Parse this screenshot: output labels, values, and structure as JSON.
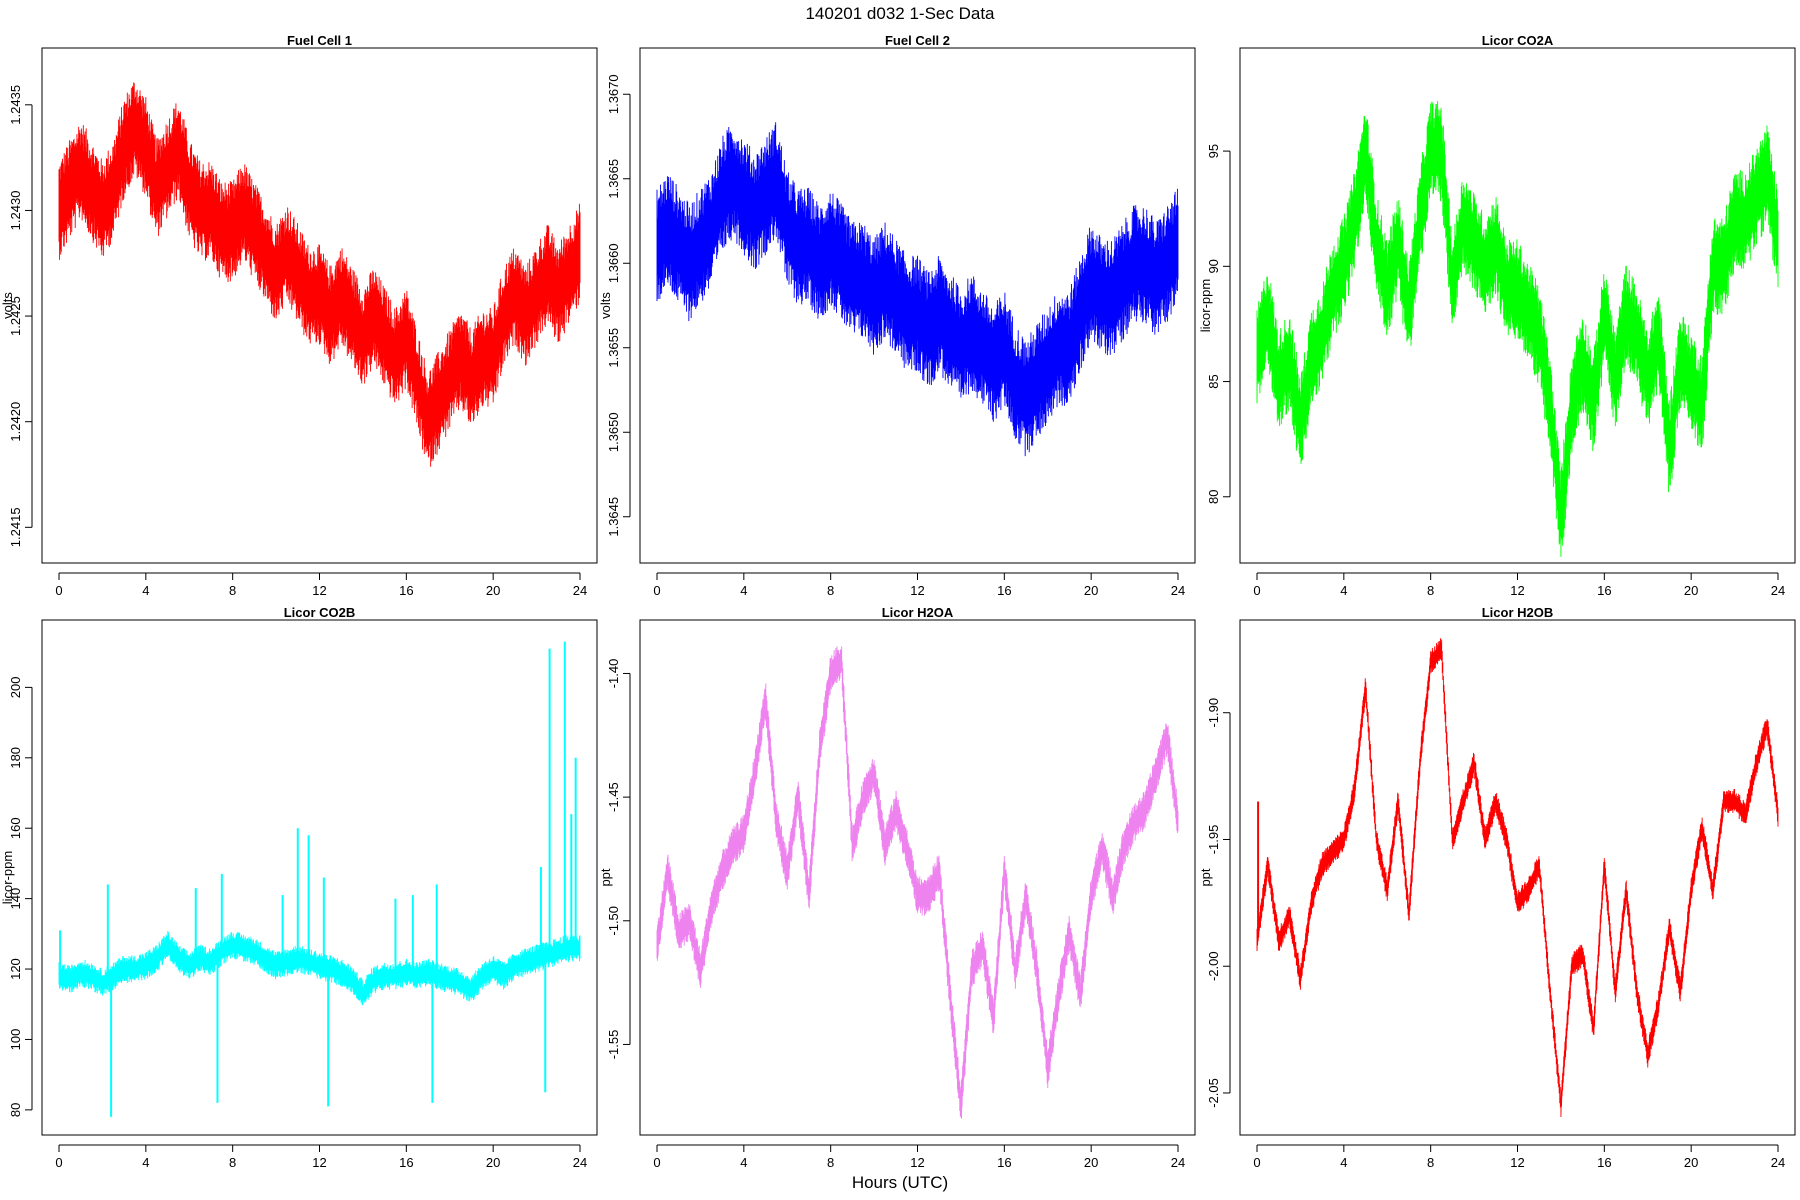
{
  "figure": {
    "title": "140201   d032   1-Sec Data",
    "xlabel": "Hours (UTC)"
  },
  "chart_data": [
    {
      "type": "line",
      "title": "Fuel Cell 1",
      "ylabel": "volts",
      "color": "#ff0000",
      "xlim": [
        0,
        24
      ],
      "ylim": [
        1.24135,
        1.24375
      ],
      "xticks": [
        0,
        4,
        8,
        12,
        16,
        20,
        24
      ],
      "yticks": [
        1.2415,
        1.242,
        1.2425,
        1.243,
        1.2435
      ],
      "yticklabels": [
        "1.2415",
        "1.2420",
        "1.2425",
        "1.2430",
        "1.2435"
      ],
      "noise": 0.00024,
      "spikes": [],
      "x": [
        0,
        0.5,
        1,
        1.5,
        2,
        2.5,
        3,
        3.5,
        4,
        4.5,
        5,
        5.5,
        6,
        6.5,
        7,
        7.5,
        8,
        8.5,
        9,
        9.5,
        10,
        10.5,
        11,
        11.5,
        12,
        12.5,
        13,
        13.5,
        14,
        14.5,
        15,
        15.5,
        16,
        16.5,
        17,
        17.5,
        18,
        18.5,
        19,
        19.5,
        20,
        20.5,
        21,
        21.5,
        22,
        22.5,
        23,
        23.5,
        24
      ],
      "y": [
        1.243,
        1.2431,
        1.2432,
        1.2431,
        1.243,
        1.2431,
        1.2433,
        1.2434,
        1.2433,
        1.2431,
        1.2432,
        1.2433,
        1.2431,
        1.243,
        1.243,
        1.2429,
        1.2429,
        1.243,
        1.2429,
        1.2428,
        1.2427,
        1.2428,
        1.2427,
        1.2426,
        1.2426,
        1.2425,
        1.2426,
        1.2425,
        1.2424,
        1.2425,
        1.2424,
        1.2423,
        1.2424,
        1.2422,
        1.242,
        1.2421,
        1.2422,
        1.2423,
        1.2422,
        1.2423,
        1.2423,
        1.2425,
        1.2426,
        1.2425,
        1.2426,
        1.2427,
        1.2426,
        1.2427,
        1.2428
      ]
    },
    {
      "type": "line",
      "title": "Fuel Cell 2",
      "ylabel": "volts",
      "color": "#0000ff",
      "xlim": [
        0,
        24
      ],
      "ylim": [
        1.36425,
        1.36725
      ],
      "xticks": [
        0,
        4,
        8,
        12,
        16,
        20,
        24
      ],
      "yticks": [
        1.3645,
        1.365,
        1.3655,
        1.366,
        1.3665,
        1.367
      ],
      "yticklabels": [
        "1.3645",
        "1.3650",
        "1.3655",
        "1.3660",
        "1.3665",
        "1.3670"
      ],
      "noise": 0.00035,
      "spikes": [],
      "x": [
        0,
        0.5,
        1,
        1.5,
        2,
        2.5,
        3,
        3.5,
        4,
        4.5,
        5,
        5.5,
        6,
        6.5,
        7,
        7.5,
        8,
        8.5,
        9,
        9.5,
        10,
        10.5,
        11,
        11.5,
        12,
        12.5,
        13,
        13.5,
        14,
        14.5,
        15,
        15.5,
        16,
        16.5,
        17,
        17.5,
        18,
        18.5,
        19,
        19.5,
        20,
        20.5,
        21,
        21.5,
        22,
        22.5,
        23,
        23.5,
        24
      ],
      "y": [
        1.3661,
        1.3662,
        1.3661,
        1.366,
        1.3661,
        1.3662,
        1.3664,
        1.3665,
        1.3664,
        1.3663,
        1.3664,
        1.3665,
        1.3662,
        1.3661,
        1.3661,
        1.366,
        1.3661,
        1.366,
        1.3659,
        1.3659,
        1.3658,
        1.3659,
        1.3658,
        1.3657,
        1.3657,
        1.3656,
        1.3657,
        1.3656,
        1.3655,
        1.3656,
        1.3655,
        1.3654,
        1.3655,
        1.3653,
        1.3652,
        1.3653,
        1.3654,
        1.3655,
        1.3655,
        1.3657,
        1.3659,
        1.3658,
        1.3658,
        1.3659,
        1.366,
        1.366,
        1.3659,
        1.366,
        1.3661
      ]
    },
    {
      "type": "line",
      "title": "Licor CO2A",
      "ylabel": "licor-ppm",
      "color": "#00ff00",
      "xlim": [
        0,
        24
      ],
      "ylim": [
        77.3,
        99.3
      ],
      "xticks": [
        0,
        4,
        8,
        12,
        16,
        20,
        24
      ],
      "yticks": [
        80,
        85,
        90,
        95
      ],
      "yticklabels": [
        "80",
        "85",
        "90",
        "95"
      ],
      "noise": 2.2,
      "spikes": [],
      "x": [
        0,
        0.5,
        1,
        1.5,
        2,
        2.5,
        3,
        3.5,
        4,
        4.5,
        5,
        5.5,
        6,
        6.5,
        7,
        7.5,
        8,
        8.5,
        9,
        9.5,
        10,
        10.5,
        11,
        11.5,
        12,
        12.5,
        13,
        13.5,
        14,
        14.5,
        15,
        15.5,
        16,
        16.5,
        17,
        17.5,
        18,
        18.5,
        19,
        19.5,
        20,
        20.5,
        21,
        21.5,
        22,
        22.5,
        23,
        23.5,
        24
      ],
      "y": [
        86,
        88,
        85,
        86,
        83,
        86,
        87,
        89,
        90,
        92,
        95,
        91,
        89,
        91,
        88,
        92,
        95,
        95,
        89,
        92,
        91,
        90,
        91,
        89,
        89,
        88,
        87,
        84,
        79,
        84,
        86,
        84,
        88,
        85,
        88,
        87,
        85,
        87,
        82,
        86,
        85,
        84,
        90,
        90,
        92,
        92,
        93,
        94,
        91
      ]
    },
    {
      "type": "line",
      "title": "Licor CO2B",
      "ylabel": "licor-ppm",
      "color": "#00ffff",
      "xlim": [
        0,
        24
      ],
      "ylim": [
        74,
        218
      ],
      "xticks": [
        0,
        4,
        8,
        12,
        16,
        20,
        24
      ],
      "yticks": [
        80,
        100,
        120,
        140,
        160,
        180,
        200
      ],
      "yticklabels": [
        "80",
        "100",
        "120",
        "140",
        "160",
        "180",
        "200"
      ],
      "noise": 4,
      "spikes": [
        {
          "x": 0.05,
          "y": 131
        },
        {
          "x": 2.25,
          "y": 144
        },
        {
          "x": 2.4,
          "y": 78
        },
        {
          "x": 6.3,
          "y": 143
        },
        {
          "x": 7.3,
          "y": 82
        },
        {
          "x": 7.5,
          "y": 147
        },
        {
          "x": 10.3,
          "y": 141
        },
        {
          "x": 11.0,
          "y": 160
        },
        {
          "x": 11.5,
          "y": 158
        },
        {
          "x": 12.2,
          "y": 146
        },
        {
          "x": 12.4,
          "y": 81
        },
        {
          "x": 15.5,
          "y": 140
        },
        {
          "x": 16.3,
          "y": 141
        },
        {
          "x": 17.2,
          "y": 82
        },
        {
          "x": 17.4,
          "y": 144
        },
        {
          "x": 22.2,
          "y": 149
        },
        {
          "x": 22.4,
          "y": 85
        },
        {
          "x": 22.6,
          "y": 211
        },
        {
          "x": 23.3,
          "y": 213
        },
        {
          "x": 23.6,
          "y": 164
        },
        {
          "x": 23.8,
          "y": 180
        }
      ],
      "x": [
        0,
        0.5,
        1,
        1.5,
        2,
        2.5,
        3,
        3.5,
        4,
        4.5,
        5,
        5.5,
        6,
        6.5,
        7,
        7.5,
        8,
        8.5,
        9,
        9.5,
        10,
        10.5,
        11,
        11.5,
        12,
        12.5,
        13,
        13.5,
        14,
        14.5,
        15,
        15.5,
        16,
        16.5,
        17,
        17.5,
        18,
        18.5,
        19,
        19.5,
        20,
        20.5,
        21,
        21.5,
        22,
        22.5,
        23,
        23.5,
        24
      ],
      "y": [
        118,
        117,
        119,
        118,
        116,
        118,
        120,
        120,
        121,
        123,
        127,
        123,
        121,
        123,
        122,
        125,
        127,
        126,
        125,
        123,
        121,
        122,
        123,
        122,
        121,
        120,
        119,
        117,
        113,
        117,
        118,
        118,
        119,
        118,
        119,
        118,
        117,
        116,
        114,
        118,
        120,
        118,
        121,
        122,
        123,
        124,
        125,
        126,
        126
      ]
    },
    {
      "type": "line",
      "title": "Licor H2OA",
      "ylabel": "ppt",
      "color": "#ee82ee",
      "xlim": [
        0,
        24
      ],
      "ylim": [
        -1.585,
        -1.38
      ],
      "xticks": [
        0,
        4,
        8,
        12,
        16,
        20,
        24
      ],
      "yticks": [
        -1.55,
        -1.5,
        -1.45,
        -1.4
      ],
      "yticklabels": [
        "-1.55",
        "-1.50",
        "-1.45",
        "-1.40"
      ],
      "noise": 0.008,
      "spikes": [],
      "x": [
        0,
        0.5,
        1,
        1.5,
        2,
        2.5,
        3,
        3.5,
        4,
        4.5,
        5,
        5.5,
        6,
        6.5,
        7,
        7.5,
        8,
        8.5,
        9,
        9.5,
        10,
        10.5,
        11,
        11.5,
        12,
        12.5,
        13,
        13.5,
        14,
        14.5,
        15,
        15.5,
        16,
        16.5,
        17,
        17.5,
        18,
        18.5,
        19,
        19.5,
        20,
        20.5,
        21,
        21.5,
        22,
        22.5,
        23,
        23.5,
        24
      ],
      "y": [
        -1.51,
        -1.48,
        -1.505,
        -1.5,
        -1.52,
        -1.495,
        -1.48,
        -1.47,
        -1.465,
        -1.44,
        -1.41,
        -1.46,
        -1.48,
        -1.45,
        -1.49,
        -1.43,
        -1.4,
        -1.395,
        -1.47,
        -1.45,
        -1.44,
        -1.47,
        -1.455,
        -1.47,
        -1.49,
        -1.49,
        -1.48,
        -1.53,
        -1.575,
        -1.52,
        -1.51,
        -1.54,
        -1.48,
        -1.52,
        -1.49,
        -1.52,
        -1.56,
        -1.53,
        -1.505,
        -1.53,
        -1.49,
        -1.47,
        -1.49,
        -1.47,
        -1.46,
        -1.455,
        -1.44,
        -1.425,
        -1.46
      ]
    },
    {
      "type": "line",
      "title": "Licor H2OB",
      "ylabel": "ppt",
      "color": "#ff0000",
      "xlim": [
        0,
        24
      ],
      "ylim": [
        -2.065,
        -1.865
      ],
      "xticks": [
        0,
        4,
        8,
        12,
        16,
        20,
        24
      ],
      "yticks": [
        -2.05,
        -2.0,
        -1.95,
        -1.9
      ],
      "yticklabels": [
        "-2.05",
        "-2.00",
        "-1.95",
        "-1.90"
      ],
      "noise": 0.005,
      "spikes": [
        {
          "x": 0.05,
          "y": -1.935
        }
      ],
      "x": [
        0,
        0.5,
        1,
        1.5,
        2,
        2.5,
        3,
        3.5,
        4,
        4.5,
        5,
        5.5,
        6,
        6.5,
        7,
        7.5,
        8,
        8.5,
        9,
        9.5,
        10,
        10.5,
        11,
        11.5,
        12,
        12.5,
        13,
        13.5,
        14,
        14.5,
        15,
        15.5,
        16,
        16.5,
        17,
        17.5,
        18,
        18.5,
        19,
        19.5,
        20,
        20.5,
        21,
        21.5,
        22,
        22.5,
        23,
        23.5,
        24
      ],
      "y": [
        -1.99,
        -1.96,
        -1.99,
        -1.98,
        -2.005,
        -1.975,
        -1.96,
        -1.955,
        -1.95,
        -1.93,
        -1.89,
        -1.95,
        -1.97,
        -1.935,
        -1.98,
        -1.92,
        -1.88,
        -1.875,
        -1.95,
        -1.935,
        -1.92,
        -1.95,
        -1.935,
        -1.95,
        -1.975,
        -1.97,
        -1.96,
        -2.01,
        -2.055,
        -2.0,
        -1.995,
        -2.025,
        -1.96,
        -2.01,
        -1.97,
        -2.01,
        -2.035,
        -2.015,
        -1.985,
        -2.01,
        -1.97,
        -1.945,
        -1.97,
        -1.935,
        -1.935,
        -1.94,
        -1.92,
        -1.905,
        -1.94
      ]
    }
  ]
}
